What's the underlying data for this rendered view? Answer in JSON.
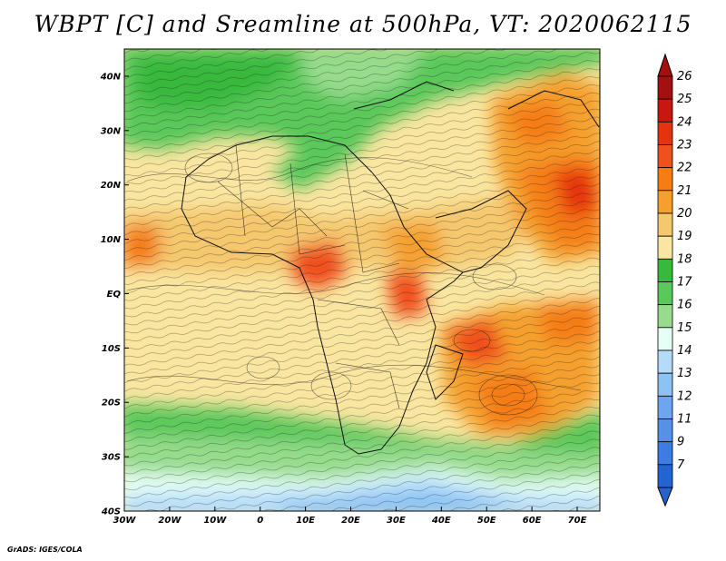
{
  "title": "WBPT [C] and Sreamline at 500hPa, VT: 2020062115",
  "footer": "GrADS: IGES/COLA",
  "map": {
    "lon_range": [
      -30,
      75
    ],
    "lat_range": [
      -40,
      45
    ],
    "x_ticks": [
      {
        "value": -30,
        "label": "30W"
      },
      {
        "value": -20,
        "label": "20W"
      },
      {
        "value": -10,
        "label": "10W"
      },
      {
        "value": 0,
        "label": "0"
      },
      {
        "value": 10,
        "label": "10E"
      },
      {
        "value": 20,
        "label": "20E"
      },
      {
        "value": 30,
        "label": "30E"
      },
      {
        "value": 40,
        "label": "40E"
      },
      {
        "value": 50,
        "label": "50E"
      },
      {
        "value": 60,
        "label": "60E"
      },
      {
        "value": 70,
        "label": "70E"
      }
    ],
    "y_ticks": [
      {
        "value": 40,
        "label": "40N"
      },
      {
        "value": 30,
        "label": "30N"
      },
      {
        "value": 20,
        "label": "20N"
      },
      {
        "value": 10,
        "label": "10N"
      },
      {
        "value": 0,
        "label": "EQ"
      },
      {
        "value": -10,
        "label": "10S"
      },
      {
        "value": -20,
        "label": "20S"
      },
      {
        "value": -30,
        "label": "30S"
      },
      {
        "value": -40,
        "label": "40S"
      }
    ]
  },
  "colorbar": {
    "levels": [
      {
        "label": "26",
        "color": "#a50f0f"
      },
      {
        "label": "25",
        "color": "#c8170f"
      },
      {
        "label": "24",
        "color": "#e6320f"
      },
      {
        "label": "23",
        "color": "#f0501e"
      },
      {
        "label": "22",
        "color": "#f57d14"
      },
      {
        "label": "21",
        "color": "#f5a02d"
      },
      {
        "label": "20",
        "color": "#f5c86e"
      },
      {
        "label": "19",
        "color": "#fae6a0"
      },
      {
        "label": "18",
        "color": "#37b93c"
      },
      {
        "label": "17",
        "color": "#5ac85a"
      },
      {
        "label": "16",
        "color": "#96dc8c"
      },
      {
        "label": "15",
        "color": "#e6fff5"
      },
      {
        "label": "14",
        "color": "#b4dcfa"
      },
      {
        "label": "13",
        "color": "#8cc3f5"
      },
      {
        "label": "12",
        "color": "#6ea5f0"
      },
      {
        "label": "11",
        "color": "#5591e6"
      },
      {
        "label": "9",
        "color": "#3c7de1"
      },
      {
        "label": "7",
        "color": "#2364d2"
      }
    ]
  }
}
